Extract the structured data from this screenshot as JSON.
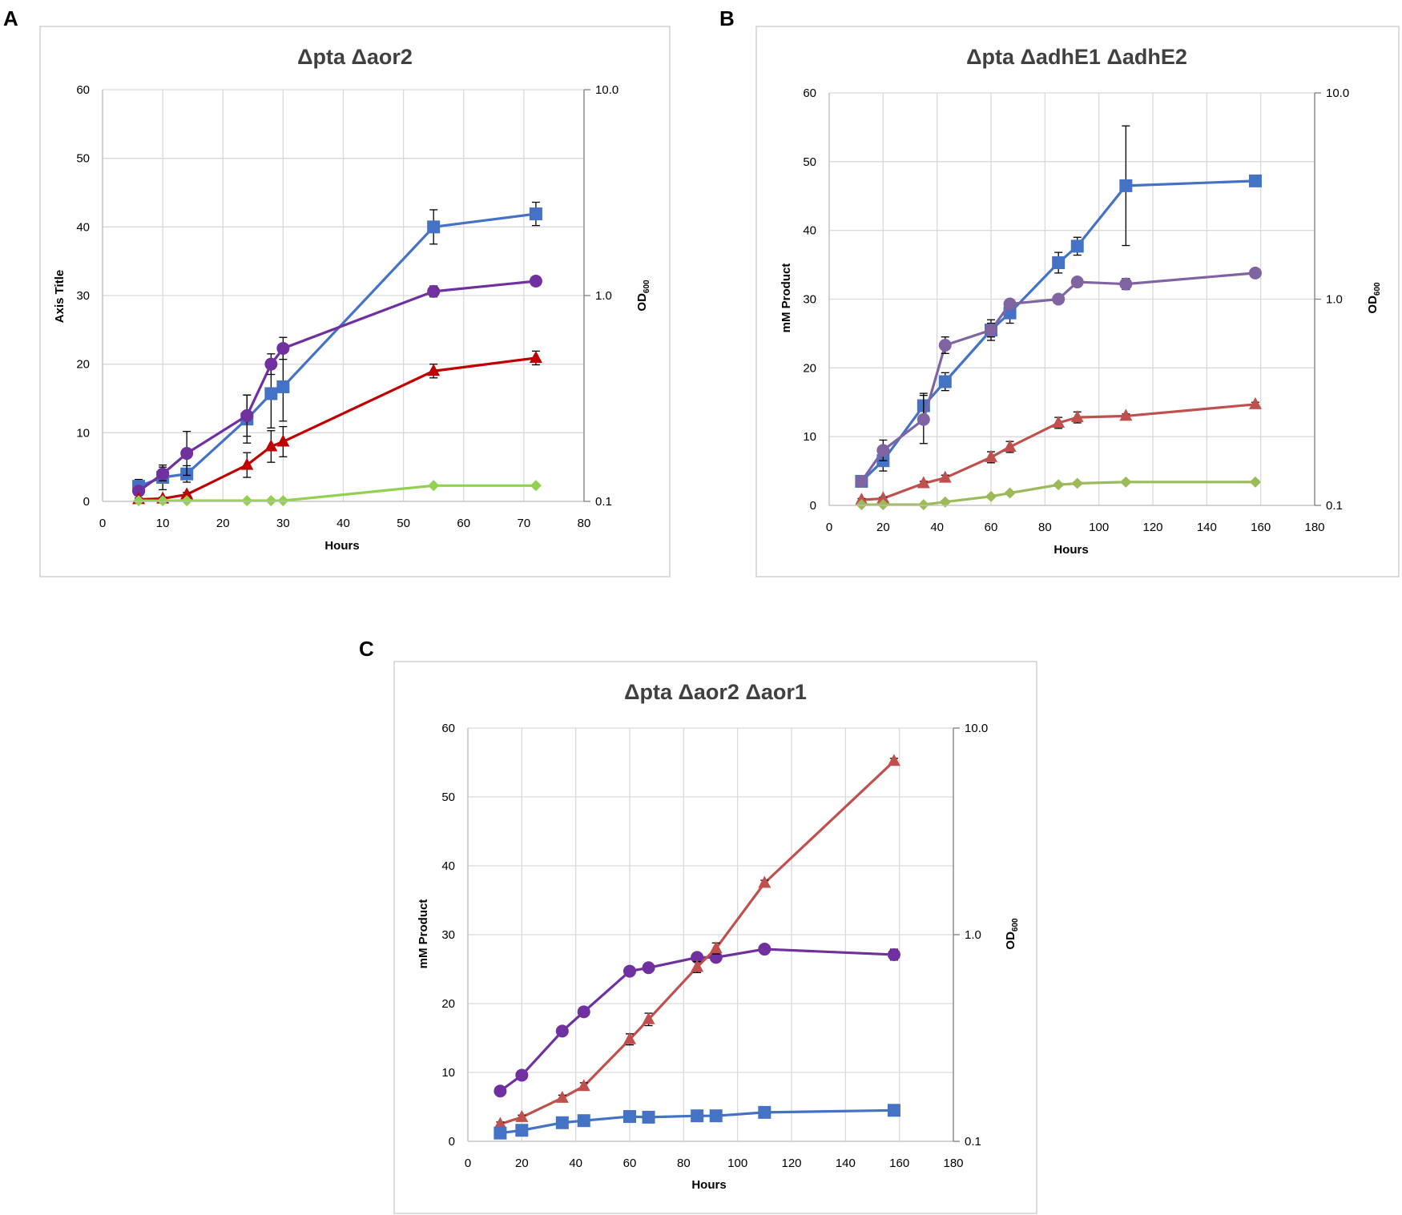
{
  "chart_data": [
    {
      "panel_label": "A",
      "type": "line",
      "title": "Δpta Δaor2",
      "xlabel": "Hours",
      "ylabel": "Axis Title",
      "y2label_main": "OD",
      "y2label_sub": "600",
      "xlim": [
        0,
        80
      ],
      "ylim": [
        0,
        60
      ],
      "x_ticks": [
        "0",
        "10",
        "20",
        "30",
        "40",
        "50",
        "60",
        "70",
        "80"
      ],
      "y_ticks": [
        "0",
        "10",
        "20",
        "30",
        "40",
        "50",
        "60"
      ],
      "y2_ticks": [
        "0.1",
        "1.0",
        "10.0"
      ],
      "grid": true,
      "series": [
        {
          "name": "blue-squares",
          "color": "#4472c4",
          "marker": "square",
          "x": [
            6,
            10,
            14,
            24,
            28,
            30,
            55,
            72
          ],
          "y": [
            2.2,
            3.5,
            4.0,
            12.0,
            15.7,
            16.7,
            40.0,
            41.9
          ],
          "err": [
            1.0,
            1.8,
            1.2,
            3.5,
            5.0,
            5.0,
            2.5,
            1.7
          ]
        },
        {
          "name": "purple-circles",
          "color": "#7030a0",
          "marker": "circle",
          "x": [
            6,
            10,
            14,
            24,
            28,
            30,
            55,
            72
          ],
          "y": [
            1.5,
            4.0,
            7.0,
            12.5,
            20.0,
            22.3,
            30.6,
            32.1
          ],
          "err": [
            0.5,
            1.0,
            3.2,
            3.0,
            1.5,
            1.6,
            0.8,
            0.4
          ]
        },
        {
          "name": "red-triangles",
          "color": "#c00000",
          "marker": "triangle",
          "x": [
            6,
            10,
            14,
            24,
            28,
            30,
            55,
            72
          ],
          "y": [
            0.3,
            0.4,
            1.0,
            5.3,
            8.0,
            8.7,
            19.0,
            20.9
          ],
          "err": [
            0.2,
            0.2,
            0.3,
            1.8,
            2.3,
            2.2,
            1.0,
            1.0
          ]
        },
        {
          "name": "green-diamonds",
          "color": "#92d050",
          "marker": "diamond",
          "x": [
            6,
            10,
            14,
            24,
            28,
            30,
            55,
            72
          ],
          "y": [
            0.1,
            0.1,
            0.1,
            0.1,
            0.1,
            0.1,
            2.3,
            2.3
          ],
          "err": [
            0,
            0,
            0,
            0,
            0,
            0,
            0,
            0
          ]
        }
      ]
    },
    {
      "panel_label": "B",
      "type": "line",
      "title": "Δpta ΔadhE1 ΔadhE2",
      "xlabel": "Hours",
      "ylabel": "mM Product",
      "y2label_main": "OD",
      "y2label_sub": "600",
      "xlim": [
        0,
        180
      ],
      "ylim": [
        0,
        60
      ],
      "x_ticks": [
        "0",
        "20",
        "40",
        "60",
        "80",
        "100",
        "120",
        "140",
        "160",
        "180"
      ],
      "y_ticks": [
        "0",
        "10",
        "20",
        "30",
        "40",
        "50",
        "60"
      ],
      "y2_ticks": [
        "0.1",
        "1.0",
        "10.0"
      ],
      "grid": true,
      "series": [
        {
          "name": "blue-squares",
          "color": "#4472c4",
          "marker": "square",
          "x": [
            12,
            20,
            35,
            43,
            60,
            67,
            85,
            92,
            110,
            158
          ],
          "y": [
            3.5,
            6.5,
            14.5,
            18.0,
            25.5,
            28.0,
            35.3,
            37.7,
            46.5,
            47.2
          ],
          "err": [
            0.5,
            1.5,
            1.8,
            1.3,
            1.5,
            1.5,
            1.5,
            1.3,
            8.7,
            0.3
          ]
        },
        {
          "name": "purple-circles",
          "color": "#8064a2",
          "marker": "circle",
          "x": [
            12,
            20,
            35,
            43,
            60,
            67,
            85,
            92,
            110,
            158
          ],
          "y": [
            3.5,
            8.0,
            12.5,
            23.3,
            25.5,
            29.3,
            30.0,
            32.5,
            32.2,
            33.8
          ],
          "err": [
            0.5,
            1.5,
            3.5,
            1.2,
            1.0,
            0.5,
            0.3,
            0.4,
            0.8,
            0.3
          ]
        },
        {
          "name": "red-triangles",
          "color": "#c0504d",
          "marker": "triangle",
          "x": [
            12,
            20,
            35,
            43,
            60,
            67,
            85,
            92,
            110,
            158
          ],
          "y": [
            0.8,
            1.0,
            3.2,
            4.0,
            7.0,
            8.5,
            12.0,
            12.8,
            13.0,
            14.7
          ],
          "err": [
            0.2,
            0.2,
            0.3,
            0.4,
            0.8,
            0.8,
            0.8,
            0.8,
            0.3,
            0.3
          ]
        },
        {
          "name": "green-diamonds",
          "color": "#9bbb59",
          "marker": "diamond",
          "x": [
            12,
            20,
            35,
            43,
            60,
            67,
            85,
            92,
            110,
            158
          ],
          "y": [
            0.1,
            0.1,
            0.1,
            0.5,
            1.3,
            1.8,
            3.0,
            3.2,
            3.4,
            3.4
          ],
          "err": [
            0,
            0,
            0,
            0.2,
            0.2,
            0.2,
            0.2,
            0.2,
            0.2,
            0.2
          ]
        }
      ]
    },
    {
      "panel_label": "C",
      "type": "line",
      "title": "Δpta Δaor2 Δaor1",
      "xlabel": "Hours",
      "ylabel": "mM Product",
      "y2label_main": "OD",
      "y2label_sub": "600",
      "xlim": [
        0,
        180
      ],
      "ylim": [
        0,
        60
      ],
      "x_ticks": [
        "0",
        "20",
        "40",
        "60",
        "80",
        "100",
        "120",
        "140",
        "160",
        "180"
      ],
      "y_ticks": [
        "0",
        "10",
        "20",
        "30",
        "40",
        "50",
        "60"
      ],
      "y2_ticks": [
        "0.1",
        "1.0",
        "10.0"
      ],
      "grid": true,
      "series": [
        {
          "name": "purple-circles",
          "color": "#7030a0",
          "marker": "circle",
          "x": [
            12,
            20,
            35,
            43,
            60,
            67,
            85,
            92,
            110,
            158
          ],
          "y": [
            7.3,
            9.6,
            16.0,
            18.8,
            24.7,
            25.2,
            26.7,
            26.7,
            27.9,
            27.1
          ],
          "err": [
            0.3,
            0.3,
            0.4,
            0.4,
            0.4,
            0.4,
            0.4,
            0.4,
            0.3,
            0.8
          ]
        },
        {
          "name": "red-triangles",
          "color": "#c0504d",
          "marker": "triangle",
          "x": [
            12,
            20,
            35,
            43,
            60,
            67,
            85,
            92,
            110,
            158
          ],
          "y": [
            2.5,
            3.5,
            6.3,
            8.0,
            14.8,
            17.7,
            25.3,
            28.0,
            37.5,
            55.2
          ],
          "err": [
            0.3,
            0.3,
            0.4,
            0.5,
            0.8,
            0.9,
            0.8,
            0.8,
            0.4,
            0.4
          ]
        },
        {
          "name": "blue-squares",
          "color": "#4472c4",
          "marker": "square",
          "x": [
            12,
            20,
            35,
            43,
            60,
            67,
            85,
            92,
            110,
            158
          ],
          "y": [
            1.2,
            1.6,
            2.7,
            3.0,
            3.6,
            3.5,
            3.7,
            3.7,
            4.2,
            4.5
          ],
          "err": [
            0.2,
            0.2,
            0.3,
            0.3,
            0.3,
            0.3,
            0.3,
            0.3,
            0.3,
            0.3
          ]
        }
      ]
    }
  ]
}
